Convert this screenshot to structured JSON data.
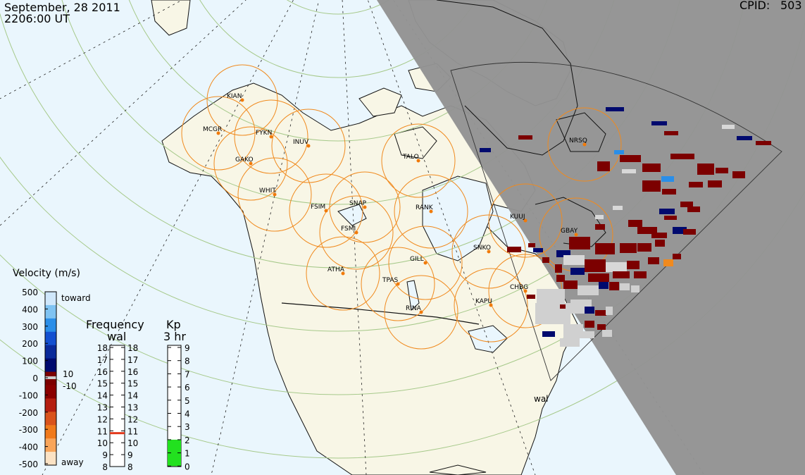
{
  "header": {
    "date": "September, 28 2011",
    "time": "2206:00 UT",
    "cpid_label": "CPID:",
    "cpid_value": "503"
  },
  "stations": [
    {
      "name": "KIAN"
    },
    {
      "name": "MCGR"
    },
    {
      "name": "FYKN"
    },
    {
      "name": "INUV"
    },
    {
      "name": "GAKO"
    },
    {
      "name": "WHIT"
    },
    {
      "name": "TALO"
    },
    {
      "name": "NRSQ"
    },
    {
      "name": "FSIM"
    },
    {
      "name": "SNAP"
    },
    {
      "name": "FSMI"
    },
    {
      "name": "RANK"
    },
    {
      "name": "KUUJ"
    },
    {
      "name": "GBAY"
    },
    {
      "name": "SNKO"
    },
    {
      "name": "ATHA"
    },
    {
      "name": "GILL"
    },
    {
      "name": "TPAS"
    },
    {
      "name": "CHBG"
    },
    {
      "name": "KAPU"
    },
    {
      "name": "RINA"
    }
  ],
  "radar_label": "wal",
  "velocity_scale": {
    "title": "Velocity (m/s)",
    "ticks": [
      "500",
      "400",
      "300",
      "200",
      "100",
      "0",
      "-100",
      "-200",
      "-300",
      "-400",
      "-500"
    ],
    "toward_label": "toward",
    "away_label": "away",
    "mid_upper": "10",
    "mid_lower": "-10",
    "colors": [
      "#fbe2c4",
      "#f8a55a",
      "#f07a1c",
      "#d9531c",
      "#b41e10",
      "#8a0000",
      "#7c0000",
      "#000a6e",
      "#0a2a9a",
      "#1450d0",
      "#2a8ee8",
      "#7fc3f2",
      "#cfe7fb"
    ]
  },
  "frequency_scale": {
    "title": "Frequency",
    "subtitle": "wal",
    "ticks": [
      "18",
      "17",
      "16",
      "15",
      "14",
      "13",
      "12",
      "11",
      "10",
      "9",
      "8"
    ],
    "current_mhz": 10.8,
    "marker_color": "#e23a1c"
  },
  "kp_scale": {
    "title": "Kp",
    "subtitle": "3 hr",
    "ticks": [
      "9",
      "8",
      "7",
      "6",
      "5",
      "4",
      "3",
      "2",
      "1",
      "0"
    ],
    "value": 2,
    "fill_color": "#22e11f"
  },
  "colors": {
    "ocean": "#eaf6fd",
    "land": "#f8f6e6",
    "night": "#939393",
    "fov_circle": "#f08a1e",
    "station_dot": "#f07a0a"
  }
}
